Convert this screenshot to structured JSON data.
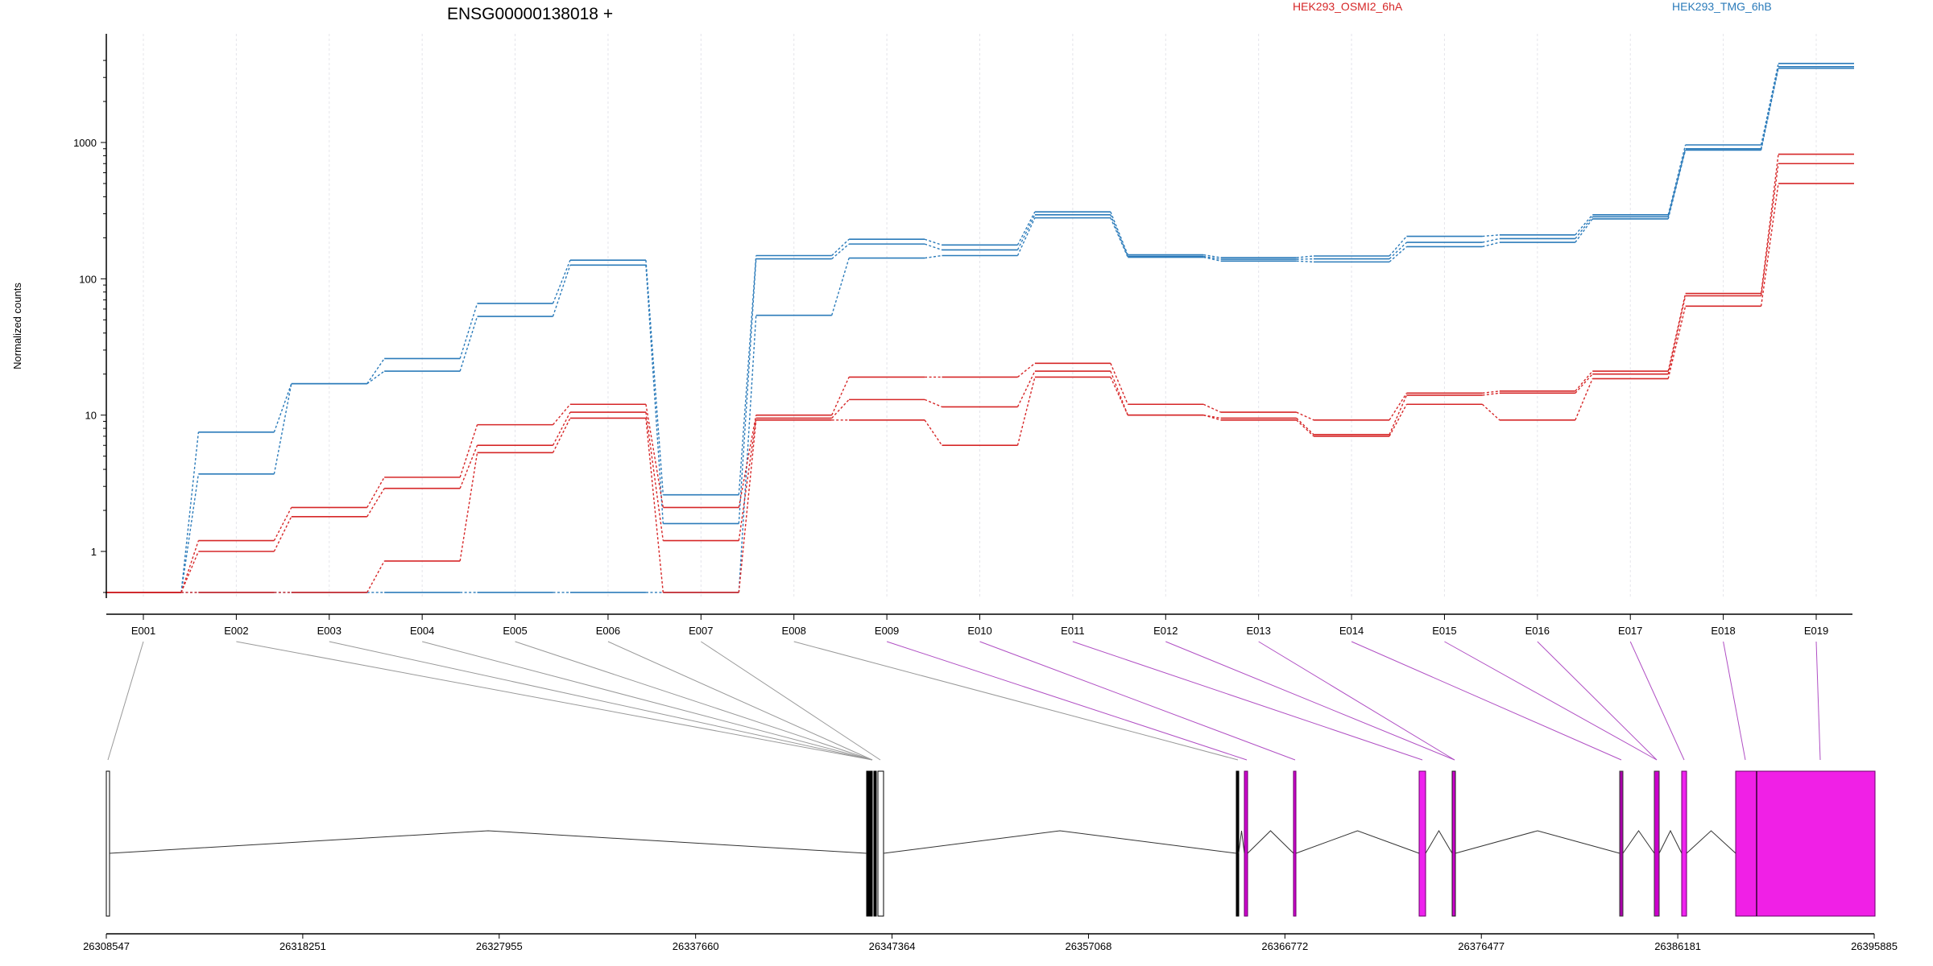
{
  "chart_data": {
    "type": "line",
    "title": "ENSG00000138018 +",
    "ylabel": "Normalized counts",
    "yscale": "log",
    "ylim": [
      0.5,
      4000
    ],
    "y_ticks": [
      1,
      10,
      100,
      1000
    ],
    "y_tick_labels": [
      "1",
      "10",
      "100",
      "1000"
    ],
    "categories": [
      "E001",
      "E002",
      "E003",
      "E004",
      "E005",
      "E006",
      "E007",
      "E008",
      "E009",
      "E010",
      "E011",
      "E012",
      "E013",
      "E014",
      "E015",
      "E016",
      "E017",
      "E018",
      "E019"
    ],
    "legend": [
      {
        "label": "HEK293_OSMI2_6hA",
        "color": "#d62728"
      },
      {
        "label": "HEK293_TMG_6hB",
        "color": "#2b7bba"
      }
    ],
    "series": [
      {
        "group": "HEK293_TMG_6hB",
        "color": "#2b7bba",
        "values": [
          0.5,
          7.5,
          17,
          26,
          66,
          137,
          2.6,
          148,
          195,
          177,
          310,
          150,
          143,
          147,
          205,
          210,
          295,
          960,
          3800
        ]
      },
      {
        "group": "HEK293_TMG_6hB",
        "color": "#2b7bba",
        "values": [
          0.5,
          3.7,
          17,
          21,
          53,
          126,
          1.6,
          140,
          180,
          163,
          295,
          146,
          139,
          140,
          185,
          197,
          285,
          900,
          3600
        ]
      },
      {
        "group": "HEK293_TMG_6hB",
        "color": "#2b7bba",
        "values": [
          0.5,
          0.5,
          0.5,
          0.5,
          0.5,
          0.5,
          0.5,
          54,
          142,
          148,
          280,
          144,
          135,
          133,
          172,
          185,
          275,
          880,
          3500
        ]
      },
      {
        "group": "HEK293_OSMI2_6hA",
        "color": "#d62728",
        "values": [
          0.5,
          1.2,
          2.1,
          3.5,
          8.5,
          12,
          2.1,
          10,
          19,
          19,
          24,
          12,
          10.5,
          9.2,
          14.5,
          15,
          21,
          78,
          820
        ]
      },
      {
        "group": "HEK293_OSMI2_6hA",
        "color": "#d62728",
        "values": [
          0.5,
          1.0,
          1.8,
          2.9,
          6.0,
          10.5,
          1.2,
          9.5,
          13,
          11.5,
          21,
          10,
          9.5,
          7.2,
          14,
          14.5,
          20,
          75,
          700
        ]
      },
      {
        "group": "HEK293_OSMI2_6hA",
        "color": "#d62728",
        "values": [
          0.5,
          0.5,
          0.5,
          0.85,
          5.3,
          9.5,
          0.5,
          9.2,
          9.2,
          6.0,
          19,
          10,
          9.2,
          7.0,
          12,
          9.2,
          18.5,
          63,
          500
        ]
      }
    ],
    "gene_model": {
      "coord_ticks": [
        "26308547",
        "26318251",
        "26327955",
        "26337660",
        "26347364",
        "26357068",
        "26366772",
        "26376477",
        "26386181",
        "26395885"
      ]
    }
  }
}
